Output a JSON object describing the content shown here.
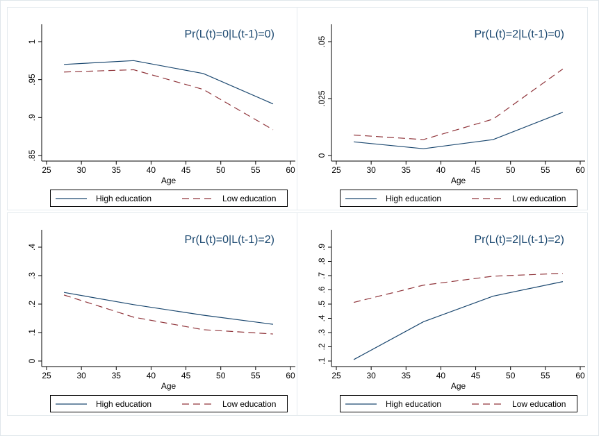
{
  "chart_data": [
    {
      "type": "line",
      "title": "Pr(L(t)=0|L(t-1)=0)",
      "xlabel": "Age",
      "x": [
        27.5,
        37.5,
        47.5,
        57.5
      ],
      "xlim": [
        25,
        60
      ],
      "xticks": [
        25,
        30,
        35,
        40,
        45,
        50,
        55,
        60
      ],
      "ylim": [
        0.85,
        1
      ],
      "yticks": [
        {
          "value": 0.85,
          "label": ".85"
        },
        {
          "value": 0.9,
          "label": ".9"
        },
        {
          "value": 0.95,
          "label": ".95"
        },
        1
      ],
      "legend": "bottom",
      "series": [
        {
          "name": "High education",
          "color": "#1a476f",
          "dash": "solid",
          "values": [
            0.97,
            0.975,
            0.958,
            0.918
          ]
        },
        {
          "name": "Low education",
          "color": "#90353b",
          "dash": "dashed",
          "values": [
            0.96,
            0.963,
            0.937,
            0.884
          ]
        }
      ]
    },
    {
      "type": "line",
      "title": "Pr(L(t)=2|L(t-1)=0)",
      "xlabel": "Age",
      "x": [
        27.5,
        37.5,
        47.5,
        57.5
      ],
      "xlim": [
        25,
        60
      ],
      "xticks": [
        25,
        30,
        35,
        40,
        45,
        50,
        55,
        60
      ],
      "ylim": [
        0,
        0.05
      ],
      "yticks": [
        0,
        {
          "value": 0.025,
          "label": ".025"
        },
        {
          "value": 0.05,
          "label": ".05"
        }
      ],
      "legend": "bottom",
      "series": [
        {
          "name": "High education",
          "color": "#1a476f",
          "dash": "solid",
          "values": [
            0.006,
            0.003,
            0.007,
            0.019
          ]
        },
        {
          "name": "Low education",
          "color": "#90353b",
          "dash": "dashed",
          "values": [
            0.009,
            0.007,
            0.016,
            0.038
          ]
        }
      ]
    },
    {
      "type": "line",
      "title": "Pr(L(t)=0|L(t-1)=2)",
      "xlabel": "Age",
      "x": [
        27.5,
        37.5,
        47.5,
        57.5
      ],
      "xlim": [
        25,
        60
      ],
      "xticks": [
        25,
        30,
        35,
        40,
        45,
        50,
        55,
        60
      ],
      "ylim": [
        0,
        0.4
      ],
      "yticks": [
        0,
        {
          "value": 0.1,
          "label": ".1"
        },
        {
          "value": 0.2,
          "label": ".2"
        },
        {
          "value": 0.3,
          "label": ".3"
        },
        {
          "value": 0.4,
          "label": ".4"
        }
      ],
      "legend": "bottom",
      "series": [
        {
          "name": "High education",
          "color": "#1a476f",
          "dash": "solid",
          "values": [
            0.241,
            0.198,
            0.161,
            0.129
          ]
        },
        {
          "name": "Low education",
          "color": "#90353b",
          "dash": "dashed",
          "values": [
            0.232,
            0.154,
            0.11,
            0.095
          ]
        }
      ]
    },
    {
      "type": "line",
      "title": "Pr(L(t)=2|L(t-1)=2)",
      "xlabel": "Age",
      "x": [
        27.5,
        37.5,
        47.5,
        57.5
      ],
      "xlim": [
        25,
        60
      ],
      "xticks": [
        25,
        30,
        35,
        40,
        45,
        50,
        55,
        60
      ],
      "ylim": [
        0.1,
        0.9
      ],
      "yticks": [
        {
          "value": 0.1,
          "label": ".1"
        },
        {
          "value": 0.2,
          "label": ".2"
        },
        {
          "value": 0.3,
          "label": ".3"
        },
        {
          "value": 0.4,
          "label": ".4"
        },
        {
          "value": 0.5,
          "label": ".5"
        },
        {
          "value": 0.6,
          "label": ".6"
        },
        {
          "value": 0.7,
          "label": ".7"
        },
        {
          "value": 0.8,
          "label": ".8"
        },
        {
          "value": 0.9,
          "label": ".9"
        }
      ],
      "legend": "bottom",
      "series": [
        {
          "name": "High education",
          "color": "#1a476f",
          "dash": "solid",
          "values": [
            0.11,
            0.376,
            0.556,
            0.658
          ]
        },
        {
          "name": "Low education",
          "color": "#90353b",
          "dash": "dashed",
          "values": [
            0.512,
            0.633,
            0.696,
            0.716
          ]
        }
      ]
    }
  ]
}
